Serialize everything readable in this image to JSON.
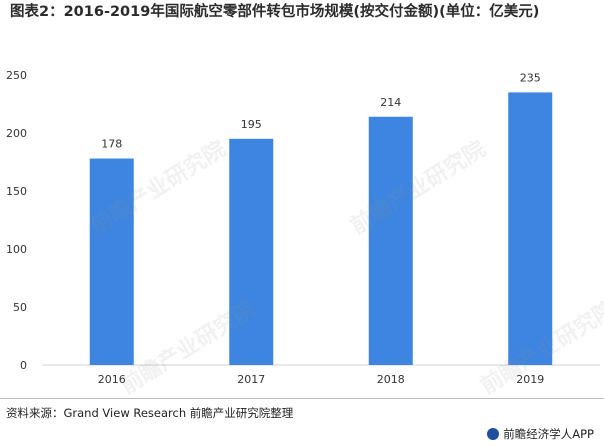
{
  "title": "图表2：2016-2019年国际航空零部件转包市场规模(按交付金额)(单位：亿美元)",
  "chart_data": {
    "type": "bar",
    "categories": [
      "2016",
      "2017",
      "2018",
      "2019"
    ],
    "values": [
      178,
      195,
      214,
      235
    ],
    "ylim": [
      0,
      250
    ],
    "yticks": [
      0,
      50,
      100,
      150,
      200,
      250
    ],
    "grid": false,
    "bar_color": "#3d85e0"
  },
  "source": "资料来源：Grand View Research 前瞻产业研究院整理",
  "brand": "前瞻经济学人APP",
  "watermark": "前瞻产业研究院"
}
